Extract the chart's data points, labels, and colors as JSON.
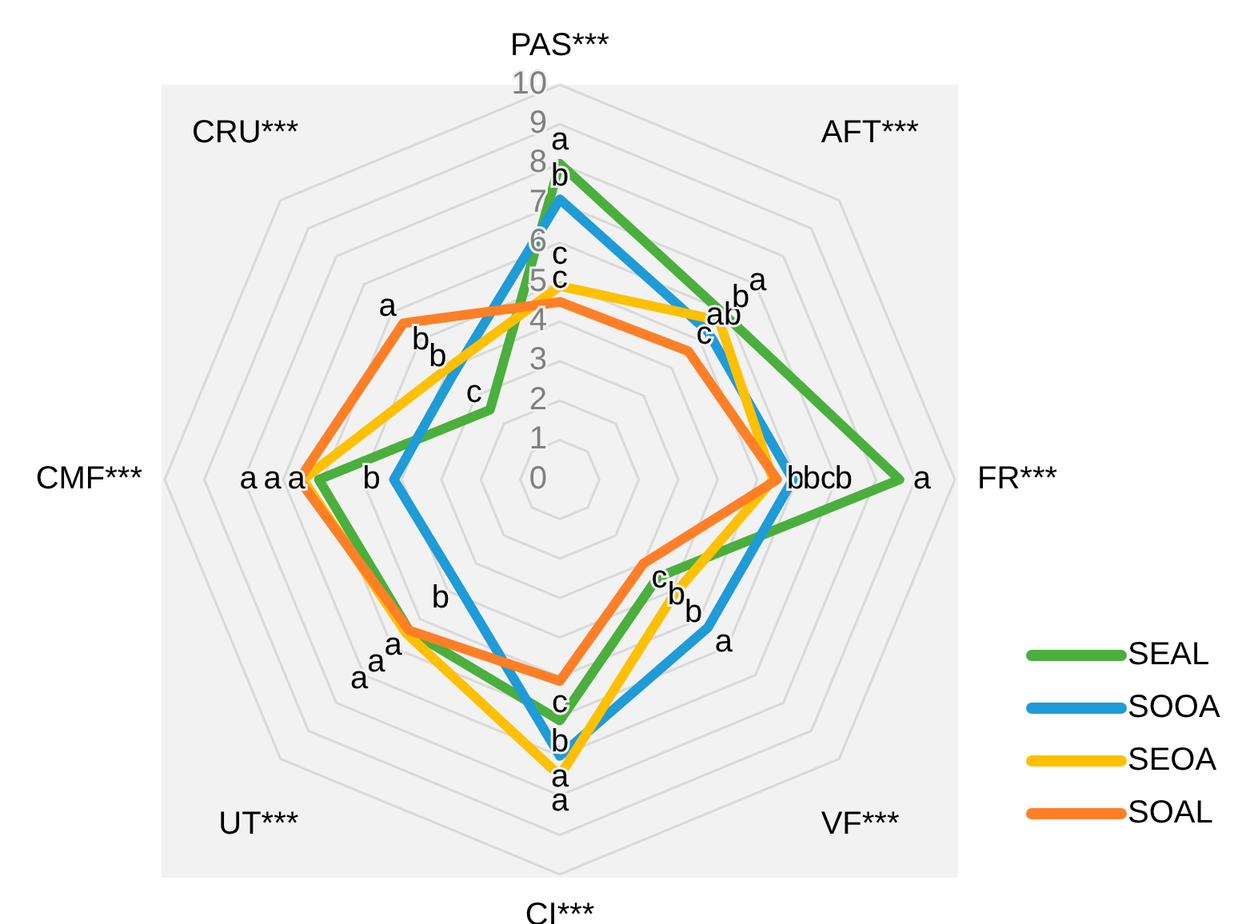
{
  "chart_data": {
    "type": "radar",
    "categories": [
      "PAS***",
      "AFT***",
      "FR***",
      "VF***",
      "CI***",
      "UT***",
      "CMF***",
      "CRU***"
    ],
    "series": [
      {
        "name": "SEAL",
        "color": "#4aaf3d",
        "values": [
          8.0,
          5.9,
          8.6,
          3.5,
          6.1,
          5.4,
          6.1,
          2.5
        ]
      },
      {
        "name": "SOOA",
        "color": "#1f9bd7",
        "values": [
          7.1,
          5.3,
          5.9,
          5.3,
          7.0,
          3.7,
          4.2,
          3.8
        ]
      },
      {
        "name": "SEOA",
        "color": "#ffc000",
        "values": [
          4.9,
          5.7,
          5.4,
          4.1,
          7.5,
          5.5,
          6.5,
          4.0
        ]
      },
      {
        "name": "SOAL",
        "color": "#ff7f27",
        "values": [
          4.5,
          4.6,
          5.5,
          3.0,
          5.1,
          5.4,
          6.6,
          5.6
        ]
      }
    ],
    "ylim": [
      0,
      10
    ],
    "yticks": [
      0,
      1,
      2,
      3,
      4,
      5,
      6,
      7,
      8,
      9,
      10
    ],
    "grid": true,
    "legend": "bottom right",
    "marker": "none",
    "line_style": "solid",
    "annotations": [
      "a",
      "b",
      "c",
      "c",
      "a",
      "ab",
      "b",
      "c",
      "a",
      "b",
      "b",
      "bc",
      "b",
      "a",
      "b",
      "c",
      "b",
      "a",
      "a",
      "c",
      "a",
      "b",
      "a",
      "a",
      "a",
      "b",
      "a",
      "a",
      "c",
      "b",
      "b",
      "a"
    ]
  }
}
